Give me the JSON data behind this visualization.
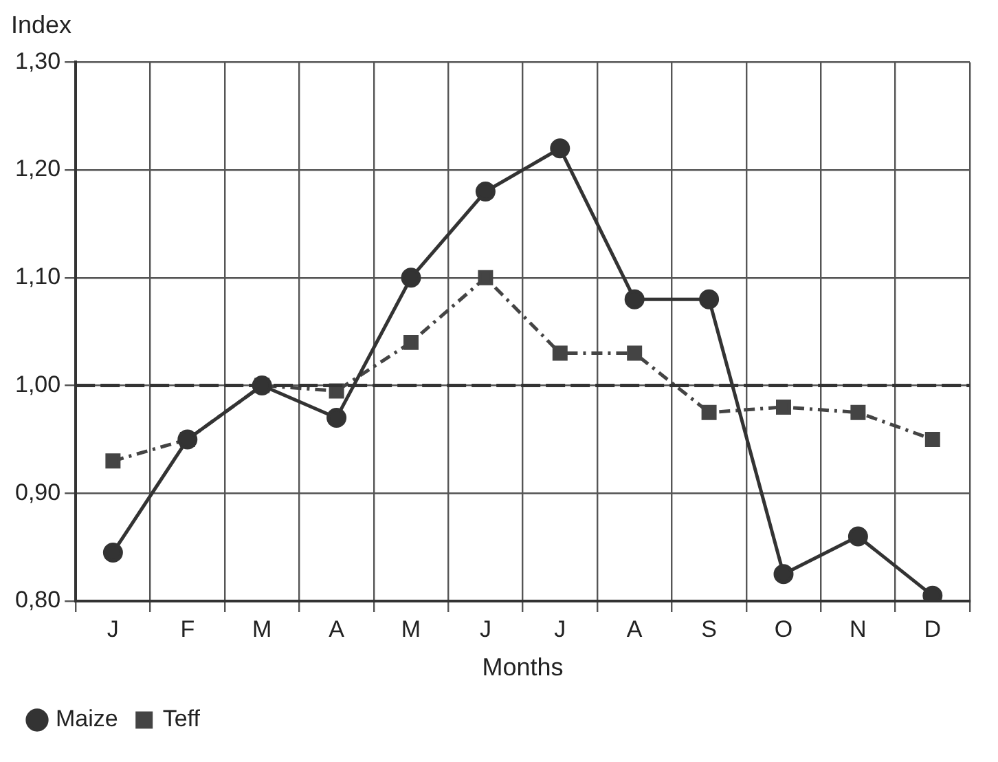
{
  "chart_data": {
    "type": "line",
    "ylabel": "Index",
    "xlabel": "Months",
    "categories": [
      "J",
      "F",
      "M",
      "A",
      "M",
      "J",
      "J",
      "A",
      "S",
      "O",
      "N",
      "D"
    ],
    "series": [
      {
        "name": "Maize",
        "color": "#333333",
        "marker": "circle",
        "line_style": "solid",
        "values": [
          0.845,
          0.95,
          1.0,
          0.97,
          1.1,
          1.18,
          1.22,
          1.08,
          1.08,
          0.825,
          0.86,
          0.805
        ]
      },
      {
        "name": "Teff",
        "color": "#444444",
        "marker": "square",
        "line_style": "dashed",
        "values": [
          0.93,
          0.95,
          1.0,
          0.995,
          1.04,
          1.1,
          1.03,
          1.03,
          0.975,
          0.98,
          0.975,
          0.95
        ]
      }
    ],
    "ylim": [
      0.8,
      1.3
    ],
    "yticks": [
      {
        "value": 0.8,
        "label": "0,80"
      },
      {
        "value": 0.9,
        "label": "0,90"
      },
      {
        "value": 1.0,
        "label": "1,00"
      },
      {
        "value": 1.1,
        "label": "1,10"
      },
      {
        "value": 1.2,
        "label": "1,20"
      },
      {
        "value": 1.3,
        "label": "1,30"
      }
    ],
    "ref_lines": [
      {
        "axis": "y",
        "value": 1.0,
        "color": "#333333",
        "line_style": "dashed"
      }
    ],
    "grid": true,
    "legend": "bottom left"
  }
}
